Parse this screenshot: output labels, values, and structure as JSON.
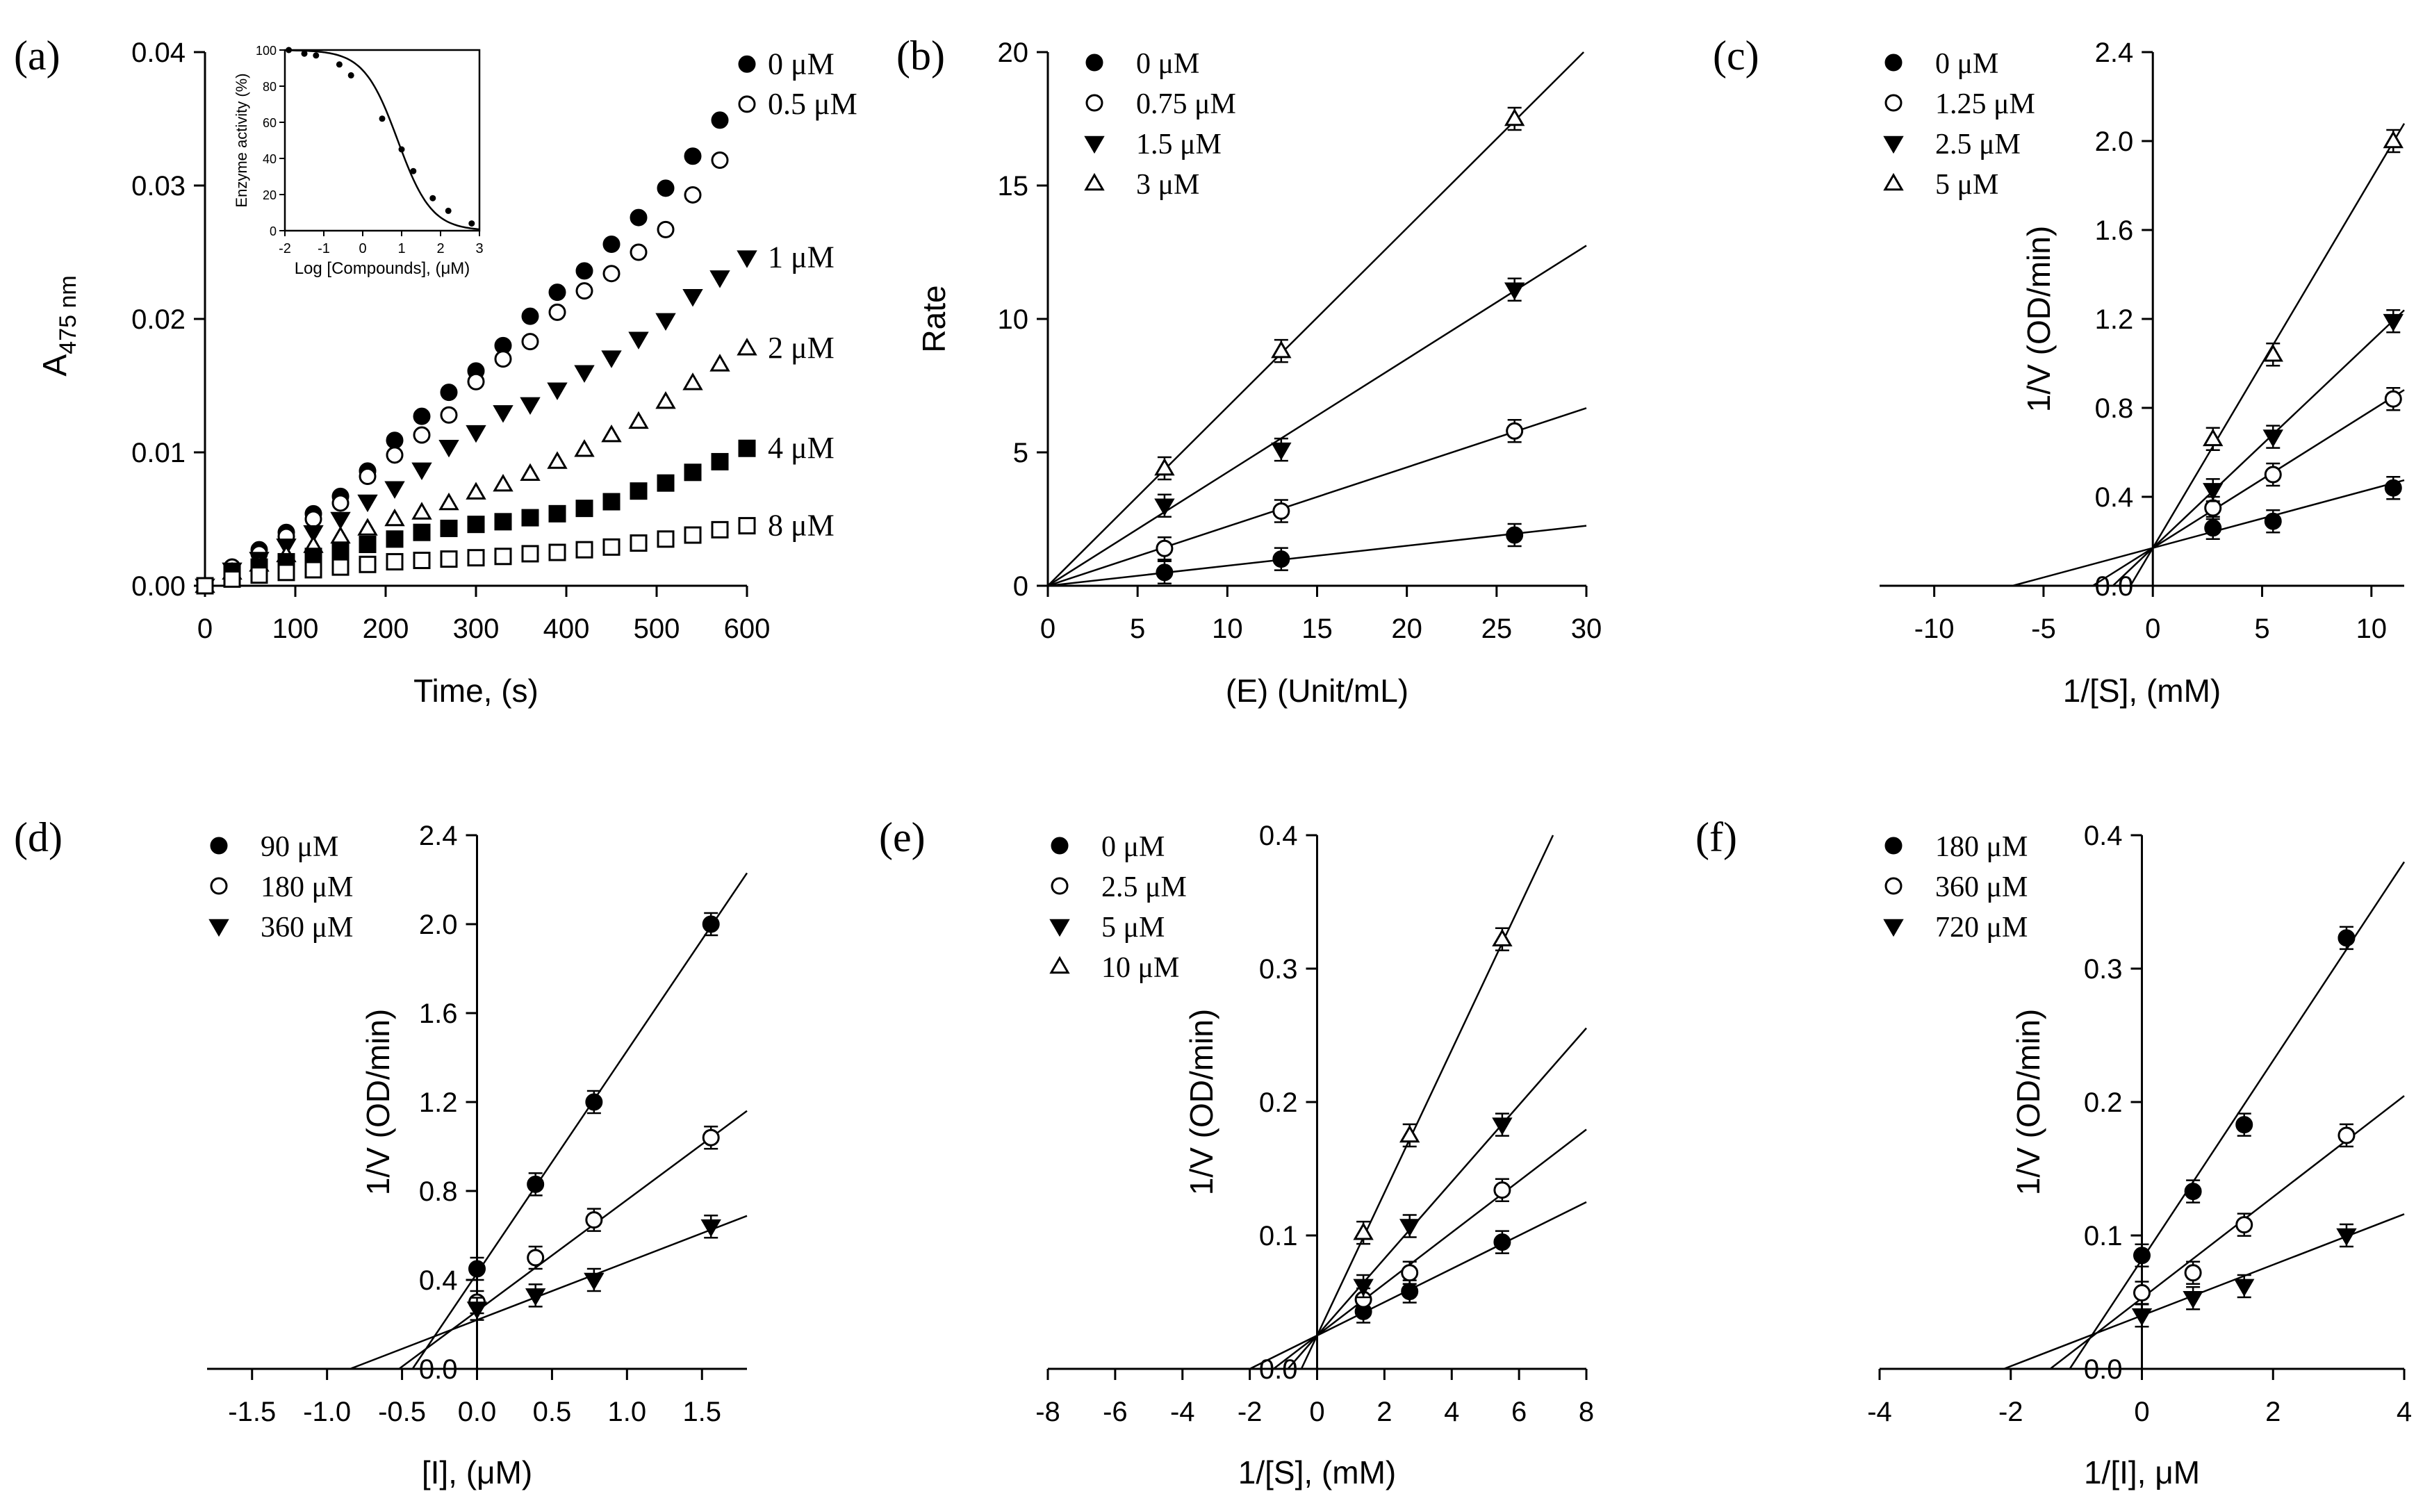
{
  "figure_title": "",
  "chart_data": [
    {
      "id": "a",
      "panel_label": "(a)",
      "type": "scatter",
      "xlabel": "Time, (s)",
      "ylabel_main": "A",
      "ylabel_sub": "475 nm",
      "xlim": [
        0,
        600
      ],
      "ylim": [
        0,
        0.04
      ],
      "xticks": [
        0,
        100,
        200,
        300,
        400,
        500,
        600
      ],
      "xtick_labels": [
        "0",
        "100",
        "200",
        "300",
        "400",
        "500",
        "600"
      ],
      "yticks": [
        0,
        0.01,
        0.02,
        0.03,
        0.04
      ],
      "ytick_labels": [
        "0.00",
        "0.01",
        "0.02",
        "0.03",
        "0.04"
      ],
      "series": [
        {
          "name": "0 µM",
          "label": "0 μM",
          "marker": "filled-circle",
          "x": [
            0,
            30,
            60,
            90,
            120,
            150,
            180,
            210,
            240,
            270,
            300,
            330,
            360,
            390,
            420,
            450,
            480,
            510,
            540,
            570,
            600
          ],
          "y": [
            0,
            0.0014,
            0.0027,
            0.004,
            0.0054,
            0.0067,
            0.0086,
            0.0109,
            0.0127,
            0.0145,
            0.0161,
            0.018,
            0.0202,
            0.022,
            0.0236,
            0.0256,
            0.0276,
            0.0298,
            0.0322,
            0.0349,
            0.0391
          ]
        },
        {
          "name": "0.5 µM",
          "label": "0.5 μM",
          "marker": "open-circle",
          "x": [
            0,
            30,
            60,
            90,
            120,
            150,
            180,
            210,
            240,
            270,
            300,
            330,
            360,
            390,
            420,
            450,
            480,
            510,
            540,
            570,
            600
          ],
          "y": [
            0,
            0.0014,
            0.0024,
            0.0037,
            0.005,
            0.0062,
            0.0082,
            0.0098,
            0.0113,
            0.0128,
            0.0153,
            0.017,
            0.0183,
            0.0205,
            0.0221,
            0.0234,
            0.025,
            0.0267,
            0.0293,
            0.0319,
            0.0361
          ]
        },
        {
          "name": "1 µM",
          "label": "1 μM",
          "marker": "filled-triangle",
          "x": [
            0,
            30,
            60,
            90,
            120,
            150,
            180,
            210,
            240,
            270,
            300,
            330,
            360,
            390,
            420,
            450,
            480,
            510,
            540,
            570,
            600
          ],
          "y": [
            0,
            0.0012,
            0.002,
            0.003,
            0.004,
            0.005,
            0.0063,
            0.0073,
            0.0087,
            0.0104,
            0.0115,
            0.013,
            0.0136,
            0.0147,
            0.016,
            0.0171,
            0.0185,
            0.0199,
            0.0217,
            0.0231,
            0.0246
          ]
        },
        {
          "name": "2 µM",
          "label": "2 μM",
          "marker": "open-triangle",
          "x": [
            0,
            30,
            60,
            90,
            120,
            150,
            180,
            210,
            240,
            270,
            300,
            330,
            360,
            390,
            420,
            450,
            480,
            510,
            540,
            570,
            600
          ],
          "y": [
            0,
            0.001,
            0.0016,
            0.0023,
            0.003,
            0.0037,
            0.0043,
            0.005,
            0.0055,
            0.0062,
            0.007,
            0.0076,
            0.0084,
            0.0093,
            0.0102,
            0.0113,
            0.0123,
            0.0138,
            0.0152,
            0.0166,
            0.0178
          ]
        },
        {
          "name": "4 µM",
          "label": "4 μM",
          "marker": "filled-square",
          "x": [
            0,
            30,
            60,
            90,
            120,
            150,
            180,
            210,
            240,
            270,
            300,
            330,
            360,
            390,
            420,
            450,
            480,
            510,
            540,
            570,
            600
          ],
          "y": [
            0,
            0.0009,
            0.0014,
            0.0018,
            0.0022,
            0.0026,
            0.0031,
            0.0035,
            0.004,
            0.0043,
            0.0046,
            0.0048,
            0.0051,
            0.0054,
            0.0058,
            0.0063,
            0.0071,
            0.0077,
            0.0085,
            0.0093,
            0.0103
          ]
        },
        {
          "name": "8 µM",
          "label": "8 μM",
          "marker": "open-square",
          "x": [
            0,
            30,
            60,
            90,
            120,
            150,
            180,
            210,
            240,
            270,
            300,
            330,
            360,
            390,
            420,
            450,
            480,
            510,
            540,
            570,
            600
          ],
          "y": [
            0,
            0.0005,
            0.0008,
            0.001,
            0.0012,
            0.0014,
            0.0016,
            0.0018,
            0.0019,
            0.002,
            0.0021,
            0.0022,
            0.0024,
            0.0025,
            0.0027,
            0.0029,
            0.0032,
            0.0035,
            0.0038,
            0.0042,
            0.0045
          ]
        }
      ],
      "inset": {
        "type": "line",
        "xlabel": "Log [Compounds], (μM)",
        "ylabel": "Enzyme activity (%)",
        "xlim": [
          -2,
          3
        ],
        "ylim": [
          0,
          100
        ],
        "xticks": [
          -2,
          -1,
          0,
          1,
          2,
          3
        ],
        "xtick_labels": [
          "-2",
          "-1",
          "0",
          "1",
          "2",
          "3"
        ],
        "yticks": [
          0,
          20,
          40,
          60,
          80,
          100
        ],
        "ytick_labels": [
          "0",
          "20",
          "40",
          "60",
          "80",
          "100"
        ],
        "x": [
          -1.9,
          -1.5,
          -1.2,
          -0.6,
          -0.3,
          0.5,
          1.0,
          1.3,
          1.8,
          2.2,
          2.8
        ],
        "y": [
          100,
          98,
          97,
          92,
          86,
          62,
          45,
          33,
          18,
          11,
          4
        ],
        "fit_midpoint": 0.9,
        "fit_slope": 1.0
      }
    },
    {
      "id": "b",
      "panel_label": "(b)",
      "type": "scatter",
      "xlabel": "(E) (Unit/mL)",
      "ylabel": "Rate",
      "xlim": [
        0,
        30
      ],
      "ylim": [
        0,
        20
      ],
      "xticks": [
        0,
        5,
        10,
        15,
        20,
        25,
        30
      ],
      "xtick_labels": [
        "0",
        "5",
        "10",
        "15",
        "20",
        "25",
        "30"
      ],
      "yticks": [
        0,
        5,
        10,
        15,
        20
      ],
      "ytick_labels": [
        "0",
        "5",
        "10",
        "15",
        "20"
      ],
      "legend_position": "top-left",
      "series": [
        {
          "name": "0 µM",
          "label": "0 μM",
          "marker": "filled-circle",
          "x": [
            6.5,
            13,
            26
          ],
          "y": [
            0.5,
            1.0,
            1.9
          ],
          "slope": 0.075,
          "intercept": 0
        },
        {
          "name": "0.75 µM",
          "label": "0.75 μM",
          "marker": "open-circle",
          "x": [
            6.5,
            13,
            26
          ],
          "y": [
            1.4,
            2.8,
            5.8
          ],
          "slope": 0.222,
          "intercept": 0
        },
        {
          "name": "1.5 µM",
          "label": "1.5 μM",
          "marker": "filled-triangle",
          "x": [
            6.5,
            13,
            26
          ],
          "y": [
            3.0,
            5.1,
            11.1
          ],
          "slope": 0.425,
          "intercept": 0
        },
        {
          "name": "3 µM",
          "label": "3 μM",
          "marker": "open-triangle",
          "x": [
            6.5,
            13,
            26
          ],
          "y": [
            4.4,
            8.8,
            17.5
          ],
          "slope": 0.67,
          "intercept": 0
        }
      ]
    },
    {
      "id": "c",
      "panel_label": "(c)",
      "type": "scatter",
      "xlabel": "1/[S], (mM)",
      "ylabel": "1/V (OD/min)",
      "xlim": [
        -12.5,
        11.5
      ],
      "ylim": [
        0,
        2.4
      ],
      "xticks": [
        -10,
        -5,
        0,
        5,
        10
      ],
      "xtick_labels": [
        "-10",
        "-5",
        "0",
        "5",
        "10"
      ],
      "yticks": [
        0,
        0.4,
        0.8,
        1.2,
        1.6,
        2.0,
        2.4
      ],
      "ytick_labels": [
        "0.0",
        "0.4",
        "0.8",
        "1.2",
        "1.6",
        "2.0",
        "2.4"
      ],
      "legend_position": "top-left",
      "series": [
        {
          "name": "0 µM",
          "label": "0 μM",
          "marker": "filled-circle",
          "x": [
            2.75,
            5.5,
            11
          ],
          "y": [
            0.26,
            0.29,
            0.44
          ],
          "slope": 0.0265,
          "intercept": 0.17
        },
        {
          "name": "1.25 µM",
          "label": "1.25 μM",
          "marker": "open-circle",
          "x": [
            2.75,
            5.5,
            11
          ],
          "y": [
            0.35,
            0.5,
            0.84
          ],
          "slope": 0.0618,
          "intercept": 0.17
        },
        {
          "name": "2.5 µM",
          "label": "2.5 μM",
          "marker": "filled-triangle",
          "x": [
            2.75,
            5.5,
            11
          ],
          "y": [
            0.43,
            0.67,
            1.19
          ],
          "slope": 0.093,
          "intercept": 0.17
        },
        {
          "name": "5 µM",
          "label": "5 μM",
          "marker": "open-triangle",
          "x": [
            2.75,
            5.5,
            11
          ],
          "y": [
            0.66,
            1.04,
            2.0
          ],
          "slope": 0.166,
          "intercept": 0.17
        }
      ]
    },
    {
      "id": "d",
      "panel_label": "(d)",
      "type": "scatter",
      "xlabel": "[I], (μM)",
      "ylabel": "1/V (OD/min)",
      "xlim": [
        -1.8,
        1.8
      ],
      "ylim": [
        0,
        2.4
      ],
      "xticks": [
        -1.5,
        -1.0,
        -0.5,
        0,
        0.5,
        1.0,
        1.5
      ],
      "xtick_labels": [
        "-1.5",
        "-1.0",
        "-0.5",
        "0.0",
        "0.5",
        "1.0",
        "1.5"
      ],
      "yticks": [
        0,
        0.4,
        0.8,
        1.2,
        1.6,
        2.0,
        2.4
      ],
      "ytick_labels": [
        "0.0",
        "0.4",
        "0.8",
        "1.2",
        "1.6",
        "2.0",
        "2.4"
      ],
      "legend_position": "top-left",
      "series": [
        {
          "name": "90 µM",
          "label": "90 μM",
          "marker": "filled-circle",
          "x": [
            0,
            0.39,
            0.78,
            1.56
          ],
          "y": [
            0.45,
            0.83,
            1.2,
            2.0
          ],
          "slope": 1.0,
          "intercept": 0.43
        },
        {
          "name": "180 µM",
          "label": "180 μM",
          "marker": "open-circle",
          "x": [
            0,
            0.39,
            0.78,
            1.56
          ],
          "y": [
            0.3,
            0.5,
            0.67,
            1.04
          ],
          "slope": 0.5,
          "intercept": 0.26
        },
        {
          "name": "360 µM",
          "label": "360 μM",
          "marker": "filled-triangle",
          "x": [
            0,
            0.39,
            0.78,
            1.56
          ],
          "y": [
            0.27,
            0.33,
            0.4,
            0.64
          ],
          "slope": 0.26,
          "intercept": 0.22
        }
      ]
    },
    {
      "id": "e",
      "panel_label": "(e)",
      "type": "scatter",
      "xlabel": "1/[S], (mM)",
      "ylabel": "1/V (OD/min)",
      "xlim": [
        -8,
        8
      ],
      "ylim": [
        0,
        0.4
      ],
      "xticks": [
        -8,
        -6,
        -4,
        -2,
        0,
        2,
        4,
        6,
        8
      ],
      "xtick_labels": [
        "-8",
        "-6",
        "-4",
        "-2",
        "0",
        "2",
        "4",
        "6",
        "8"
      ],
      "yticks": [
        0,
        0.1,
        0.2,
        0.3,
        0.4
      ],
      "ytick_labels": [
        "0.0",
        "0.1",
        "0.2",
        "0.3",
        "0.4"
      ],
      "legend_position": "top-left",
      "series": [
        {
          "name": "0 µM",
          "label": "0 μM",
          "marker": "filled-circle",
          "x": [
            1.375,
            2.75,
            5.5
          ],
          "y": [
            0.043,
            0.058,
            0.095
          ],
          "slope": 0.0125,
          "intercept": 0.025
        },
        {
          "name": "2.5 µM",
          "label": "2.5 μM",
          "marker": "open-circle",
          "x": [
            1.375,
            2.75,
            5.5
          ],
          "y": [
            0.052,
            0.072,
            0.134
          ],
          "slope": 0.0193,
          "intercept": 0.025
        },
        {
          "name": "5 µM",
          "label": "5 μM",
          "marker": "filled-triangle",
          "x": [
            1.375,
            2.75,
            5.5
          ],
          "y": [
            0.062,
            0.107,
            0.183
          ],
          "slope": 0.0288,
          "intercept": 0.025
        },
        {
          "name": "10 µM",
          "label": "10 μM",
          "marker": "open-triangle",
          "x": [
            1.375,
            2.75,
            5.5
          ],
          "y": [
            0.102,
            0.175,
            0.322
          ],
          "slope": 0.0535,
          "intercept": 0.025
        }
      ]
    },
    {
      "id": "f",
      "panel_label": "(f)",
      "type": "scatter",
      "xlabel": "1/[I], μM",
      "ylabel": "1/V (OD/min)",
      "xlim": [
        -4,
        4
      ],
      "ylim": [
        0,
        0.4
      ],
      "xticks": [
        -4,
        -2,
        0,
        2,
        4
      ],
      "xtick_labels": [
        "-4",
        "-2",
        "0",
        "2",
        "4"
      ],
      "yticks": [
        0,
        0.1,
        0.2,
        0.3,
        0.4
      ],
      "ytick_labels": [
        "0.0",
        "0.1",
        "0.2",
        "0.3",
        "0.4"
      ],
      "legend_position": "top-left",
      "series": [
        {
          "name": "180 µM",
          "label": "180 μM",
          "marker": "filled-circle",
          "x": [
            0,
            0.78,
            1.56,
            3.12
          ],
          "y": [
            0.085,
            0.133,
            0.183,
            0.323
          ],
          "slope": 0.0745,
          "intercept": 0.082
        },
        {
          "name": "360 µM",
          "label": "360 μM",
          "marker": "open-circle",
          "x": [
            0,
            0.78,
            1.56,
            3.12
          ],
          "y": [
            0.057,
            0.072,
            0.108,
            0.175
          ],
          "slope": 0.0379,
          "intercept": 0.053
        },
        {
          "name": "720 µM",
          "label": "720 μM",
          "marker": "filled-triangle",
          "x": [
            0,
            0.78,
            1.56,
            3.12
          ],
          "y": [
            0.04,
            0.053,
            0.062,
            0.1
          ],
          "slope": 0.019,
          "intercept": 0.04
        }
      ]
    }
  ]
}
